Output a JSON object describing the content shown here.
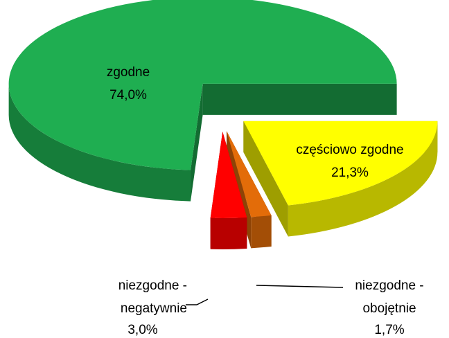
{
  "chart_data": {
    "type": "pie",
    "categories": [
      "zgodne",
      "niezgodne - negatywnie",
      "niezgodne - obojętnie",
      "częściowo zgodne"
    ],
    "values": [
      74.0,
      3.0,
      1.7,
      21.3
    ],
    "value_labels": [
      "74,0%",
      "3,0%",
      "1,7%",
      "21,3%"
    ],
    "colors": [
      "#1fae51",
      "#ff0000",
      "#e36c09",
      "#ffff00"
    ]
  }
}
